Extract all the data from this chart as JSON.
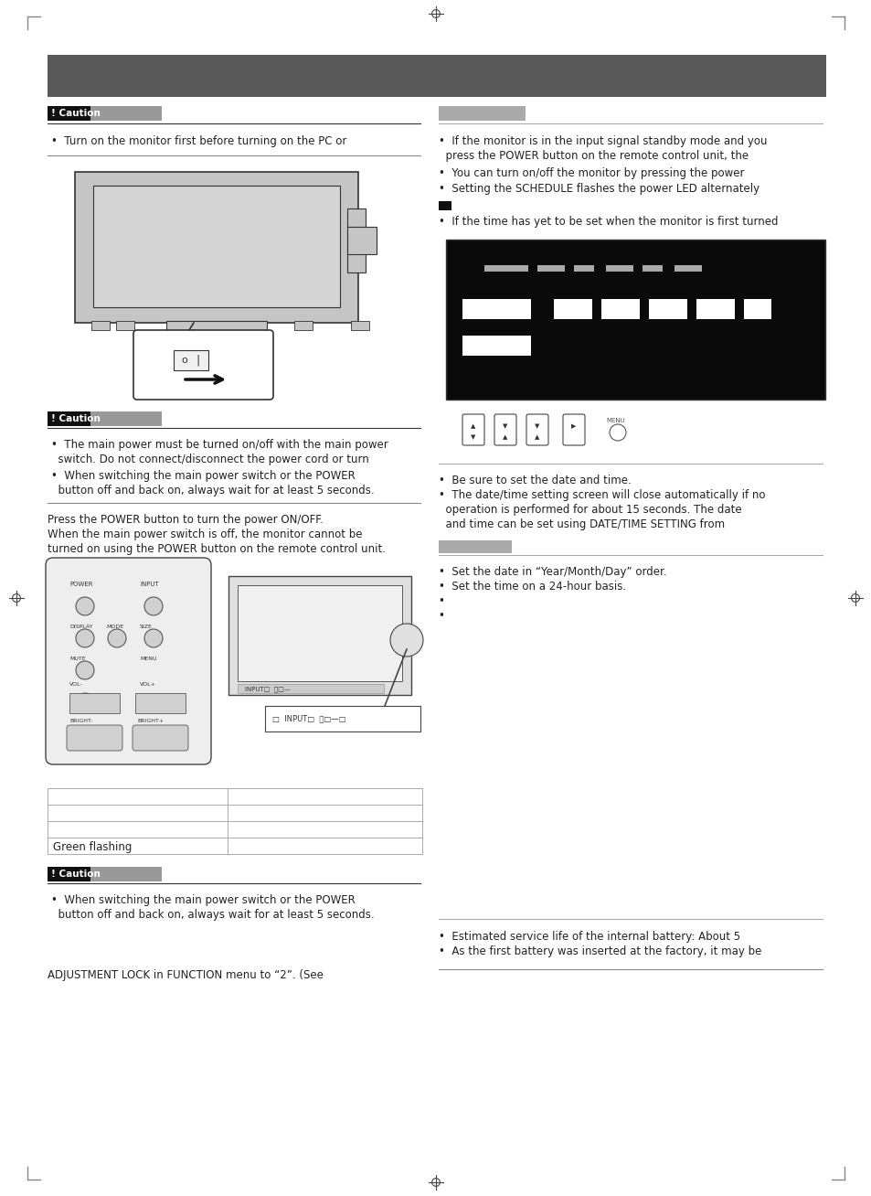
{
  "page_bg": "#ffffff",
  "header_bar_color": "#595959",
  "text_color": "#222222",
  "bullet": "•",
  "caution_label_text": "! Caution",
  "table_green_text": "Green flashing",
  "left_caution1_text": "Turn on the monitor first before turning on the PC or",
  "right_caution1_text1": "If the monitor is in the input signal standby mode and you",
  "right_caution1_text2": "  press the POWER button on the remote control unit, the",
  "right_bullet2_text": "You can turn on/off the monitor by pressing the power",
  "right_bullet3_text": "Setting the SCHEDULE flashes the power LED alternately",
  "right_square_bullet_text": "If the time has yet to be set when the monitor is first turned",
  "left_caution2_text1": "The main power must be turned on/off with the main power",
  "left_caution2_text2": "  switch. Do not connect/disconnect the power cord or turn",
  "left_caution2_text3": "When switching the main power switch or the POWER",
  "left_caution2_text4": "  button off and back on, always wait for at least 5 seconds.",
  "press_power_text1": "Press the POWER button to turn the power ON/OFF.",
  "press_power_text2": "When the main power switch is off, the monitor cannot be",
  "press_power_text3": "turned on using the POWER button on the remote control unit.",
  "right_date_bullet1": "Be sure to set the date and time.",
  "right_date_bullet2": "The date/time setting screen will close automatically if no",
  "right_date_bullet3": "  operation is performed for about 15 seconds. The date",
  "right_date_bullet4": "  and time can be set using DATE/TIME SETTING from",
  "right_set_bullet1": "Set the date in “Year/Month/Day” order.",
  "right_set_bullet2": "Set the time on a 24-hour basis.",
  "right_battery_bullet1": "Estimated service life of the internal battery: About 5",
  "right_battery_bullet2": "As the first battery was inserted at the factory, it may be",
  "caution3_text1": "When switching the main power switch or the POWER",
  "caution3_text2": "  button off and back on, always wait for at least 5 seconds.",
  "adjustment_text": "ADJUSTMENT LOCK in FUNCTION menu to “2”. (See",
  "corner_mark_color": "#888888",
  "crosshair_color": "#444444"
}
